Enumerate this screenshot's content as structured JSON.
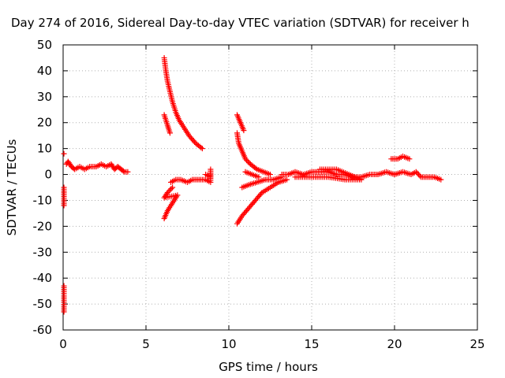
{
  "chart_data": {
    "type": "scatter",
    "title": "Day 274 of 2016, Sidereal Day-to-day VTEC variation (SDTVAR) for receiver h",
    "xlabel": "GPS time / hours",
    "ylabel": "SDTVAR / TECUs",
    "xlim": [
      0,
      25
    ],
    "ylim": [
      -60,
      50
    ],
    "xticks": [
      0,
      5,
      10,
      15,
      20,
      25
    ],
    "yticks": [
      -60,
      -50,
      -40,
      -30,
      -20,
      -10,
      0,
      10,
      20,
      30,
      40,
      50
    ],
    "xtick_labels": [
      "0",
      "5",
      "10",
      "15",
      "20",
      "25"
    ],
    "ytick_labels": [
      "-60",
      "-50",
      "-40",
      "-30",
      "-20",
      "-10",
      "0",
      "10",
      "20",
      "30",
      "40",
      "50"
    ],
    "grid": true,
    "marker": "+",
    "color": "#ff0000",
    "series": [
      {
        "name": "band-0-4h",
        "points": [
          [
            0.05,
            8
          ],
          [
            0.05,
            -5
          ],
          [
            0.05,
            -12
          ],
          [
            0.05,
            -43
          ],
          [
            0.05,
            -53
          ],
          [
            0.2,
            4
          ],
          [
            0.3,
            5
          ],
          [
            0.5,
            3
          ],
          [
            0.7,
            2
          ],
          [
            1.0,
            3
          ],
          [
            1.3,
            2
          ],
          [
            1.6,
            3
          ],
          [
            2.0,
            3
          ],
          [
            2.3,
            4
          ],
          [
            2.6,
            3
          ],
          [
            2.9,
            4
          ],
          [
            3.1,
            2
          ],
          [
            3.3,
            3
          ],
          [
            3.5,
            2
          ],
          [
            3.7,
            1
          ],
          [
            3.9,
            1
          ]
        ]
      },
      {
        "name": "descending-arc-6h",
        "points": [
          [
            6.1,
            45
          ],
          [
            6.2,
            40
          ],
          [
            6.3,
            36
          ],
          [
            6.45,
            32
          ],
          [
            6.6,
            28
          ],
          [
            6.8,
            24
          ],
          [
            7.0,
            21
          ],
          [
            7.3,
            18
          ],
          [
            7.6,
            15
          ],
          [
            8.0,
            12
          ],
          [
            8.4,
            10
          ]
        ]
      },
      {
        "name": "short-arc-6h",
        "points": [
          [
            6.1,
            23
          ],
          [
            6.2,
            21
          ],
          [
            6.3,
            19
          ],
          [
            6.45,
            16
          ]
        ]
      },
      {
        "name": "negative-arcs-6h",
        "points": [
          [
            6.1,
            -17
          ],
          [
            6.3,
            -14
          ],
          [
            6.6,
            -11
          ],
          [
            6.9,
            -8
          ],
          [
            6.1,
            -9
          ],
          [
            6.3,
            -7
          ],
          [
            6.6,
            -5
          ]
        ]
      },
      {
        "name": "flat-6-9h",
        "points": [
          [
            6.5,
            -3
          ],
          [
            6.8,
            -2
          ],
          [
            7.1,
            -2
          ],
          [
            7.5,
            -3
          ],
          [
            7.8,
            -2
          ],
          [
            8.2,
            -2
          ],
          [
            8.6,
            -2
          ],
          [
            8.9,
            -3
          ],
          [
            8.9,
            2
          ],
          [
            8.9,
            -1
          ],
          [
            8.6,
            0
          ]
        ]
      },
      {
        "name": "descending-arc-10h",
        "points": [
          [
            10.5,
            23
          ],
          [
            10.7,
            20
          ],
          [
            10.9,
            17
          ]
        ]
      },
      {
        "name": "decay-arc-10-12h",
        "points": [
          [
            10.5,
            16
          ],
          [
            10.6,
            12
          ],
          [
            10.8,
            9
          ],
          [
            11.0,
            6
          ],
          [
            11.3,
            4
          ],
          [
            11.7,
            2
          ],
          [
            12.1,
            1
          ],
          [
            12.5,
            0
          ]
        ]
      },
      {
        "name": "rising-arc-10-13h",
        "points": [
          [
            10.5,
            -19
          ],
          [
            10.8,
            -16
          ],
          [
            11.2,
            -13
          ],
          [
            11.6,
            -10
          ],
          [
            12.0,
            -7
          ],
          [
            12.5,
            -5
          ],
          [
            13.0,
            -3
          ],
          [
            13.5,
            -2
          ]
        ]
      },
      {
        "name": "mid-arc-11-13h",
        "points": [
          [
            10.8,
            -5
          ],
          [
            11.2,
            -4
          ],
          [
            11.7,
            -3
          ],
          [
            12.2,
            -2
          ],
          [
            12.7,
            -2
          ],
          [
            13.2,
            -1
          ],
          [
            11.0,
            1
          ],
          [
            11.4,
            0
          ],
          [
            11.8,
            -1
          ]
        ]
      },
      {
        "name": "band-13-20h",
        "points": [
          [
            13.2,
            0
          ],
          [
            13.6,
            0
          ],
          [
            14.0,
            1
          ],
          [
            14.5,
            0
          ],
          [
            15.0,
            1
          ],
          [
            15.5,
            1
          ],
          [
            16.0,
            1
          ],
          [
            16.5,
            0
          ],
          [
            17.0,
            0
          ],
          [
            17.5,
            -1
          ],
          [
            18.0,
            -1
          ],
          [
            18.5,
            0
          ],
          [
            19.0,
            0
          ],
          [
            19.5,
            1
          ],
          [
            20.0,
            0
          ],
          [
            14.0,
            -1
          ],
          [
            15.0,
            -1
          ],
          [
            16.0,
            -1
          ],
          [
            17.0,
            -2
          ],
          [
            18.0,
            -2
          ],
          [
            16.5,
            2
          ],
          [
            15.5,
            2
          ]
        ]
      },
      {
        "name": "bump-20-21h",
        "points": [
          [
            19.8,
            6
          ],
          [
            20.2,
            6
          ],
          [
            20.5,
            7
          ],
          [
            20.9,
            6
          ]
        ]
      },
      {
        "name": "band-20-23h",
        "points": [
          [
            20.0,
            0
          ],
          [
            20.5,
            1
          ],
          [
            21.0,
            0
          ],
          [
            21.3,
            1
          ],
          [
            21.6,
            -1
          ],
          [
            22.0,
            -1
          ],
          [
            22.4,
            -1
          ],
          [
            22.8,
            -2
          ]
        ]
      }
    ]
  }
}
